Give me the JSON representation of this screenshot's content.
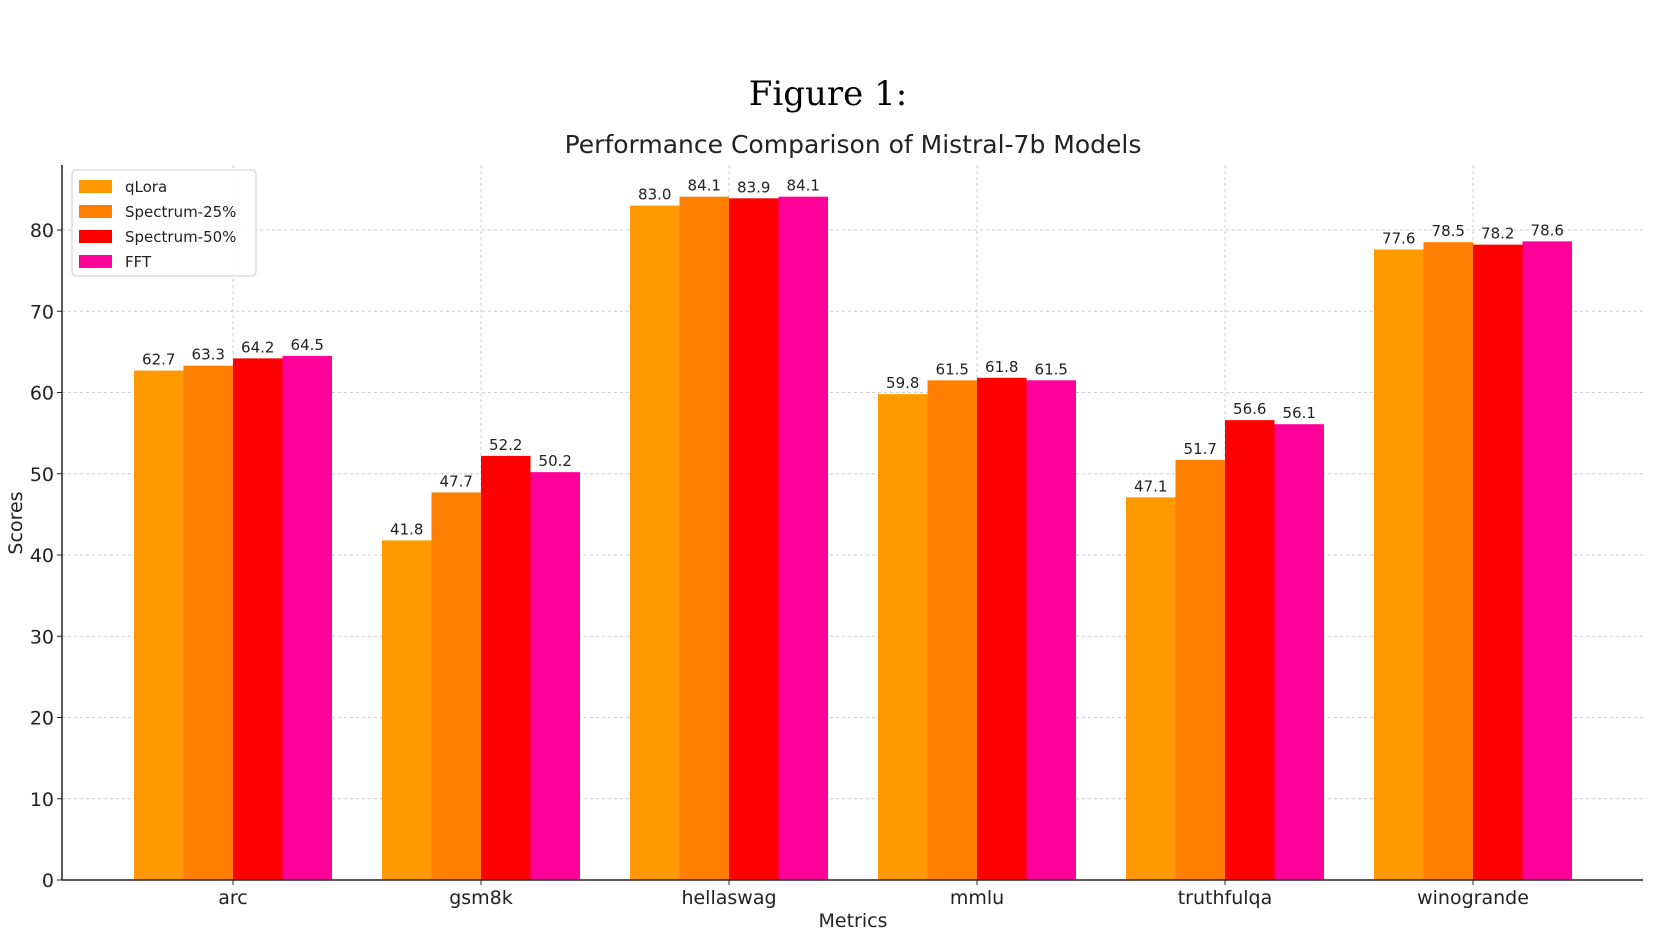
{
  "figure_caption": "Figure 1:",
  "chart_data": {
    "type": "bar",
    "title": "Performance Comparison of Mistral-7b Models",
    "xlabel": "Metrics",
    "ylabel": "Scores",
    "ylim": [
      0,
      88
    ],
    "yticks": [
      0,
      10,
      20,
      30,
      40,
      50,
      60,
      70,
      80
    ],
    "grid": true,
    "legend_position": "top-left",
    "categories": [
      "arc",
      "gsm8k",
      "hellaswag",
      "mmlu",
      "truthfulqa",
      "winogrande"
    ],
    "series": [
      {
        "name": "qLora",
        "color": "#ff9900",
        "values": [
          62.7,
          41.8,
          83.0,
          59.8,
          47.1,
          77.6
        ]
      },
      {
        "name": "Spectrum-25%",
        "color": "#ff8000",
        "values": [
          63.3,
          47.7,
          84.1,
          61.5,
          51.7,
          78.5
        ]
      },
      {
        "name": "Spectrum-50%",
        "color": "#ff0000",
        "values": [
          64.2,
          52.2,
          83.9,
          61.8,
          56.6,
          78.2
        ]
      },
      {
        "name": "FFT",
        "color": "#ff0099",
        "values": [
          64.5,
          50.2,
          84.1,
          61.5,
          56.1,
          78.6
        ]
      }
    ]
  }
}
